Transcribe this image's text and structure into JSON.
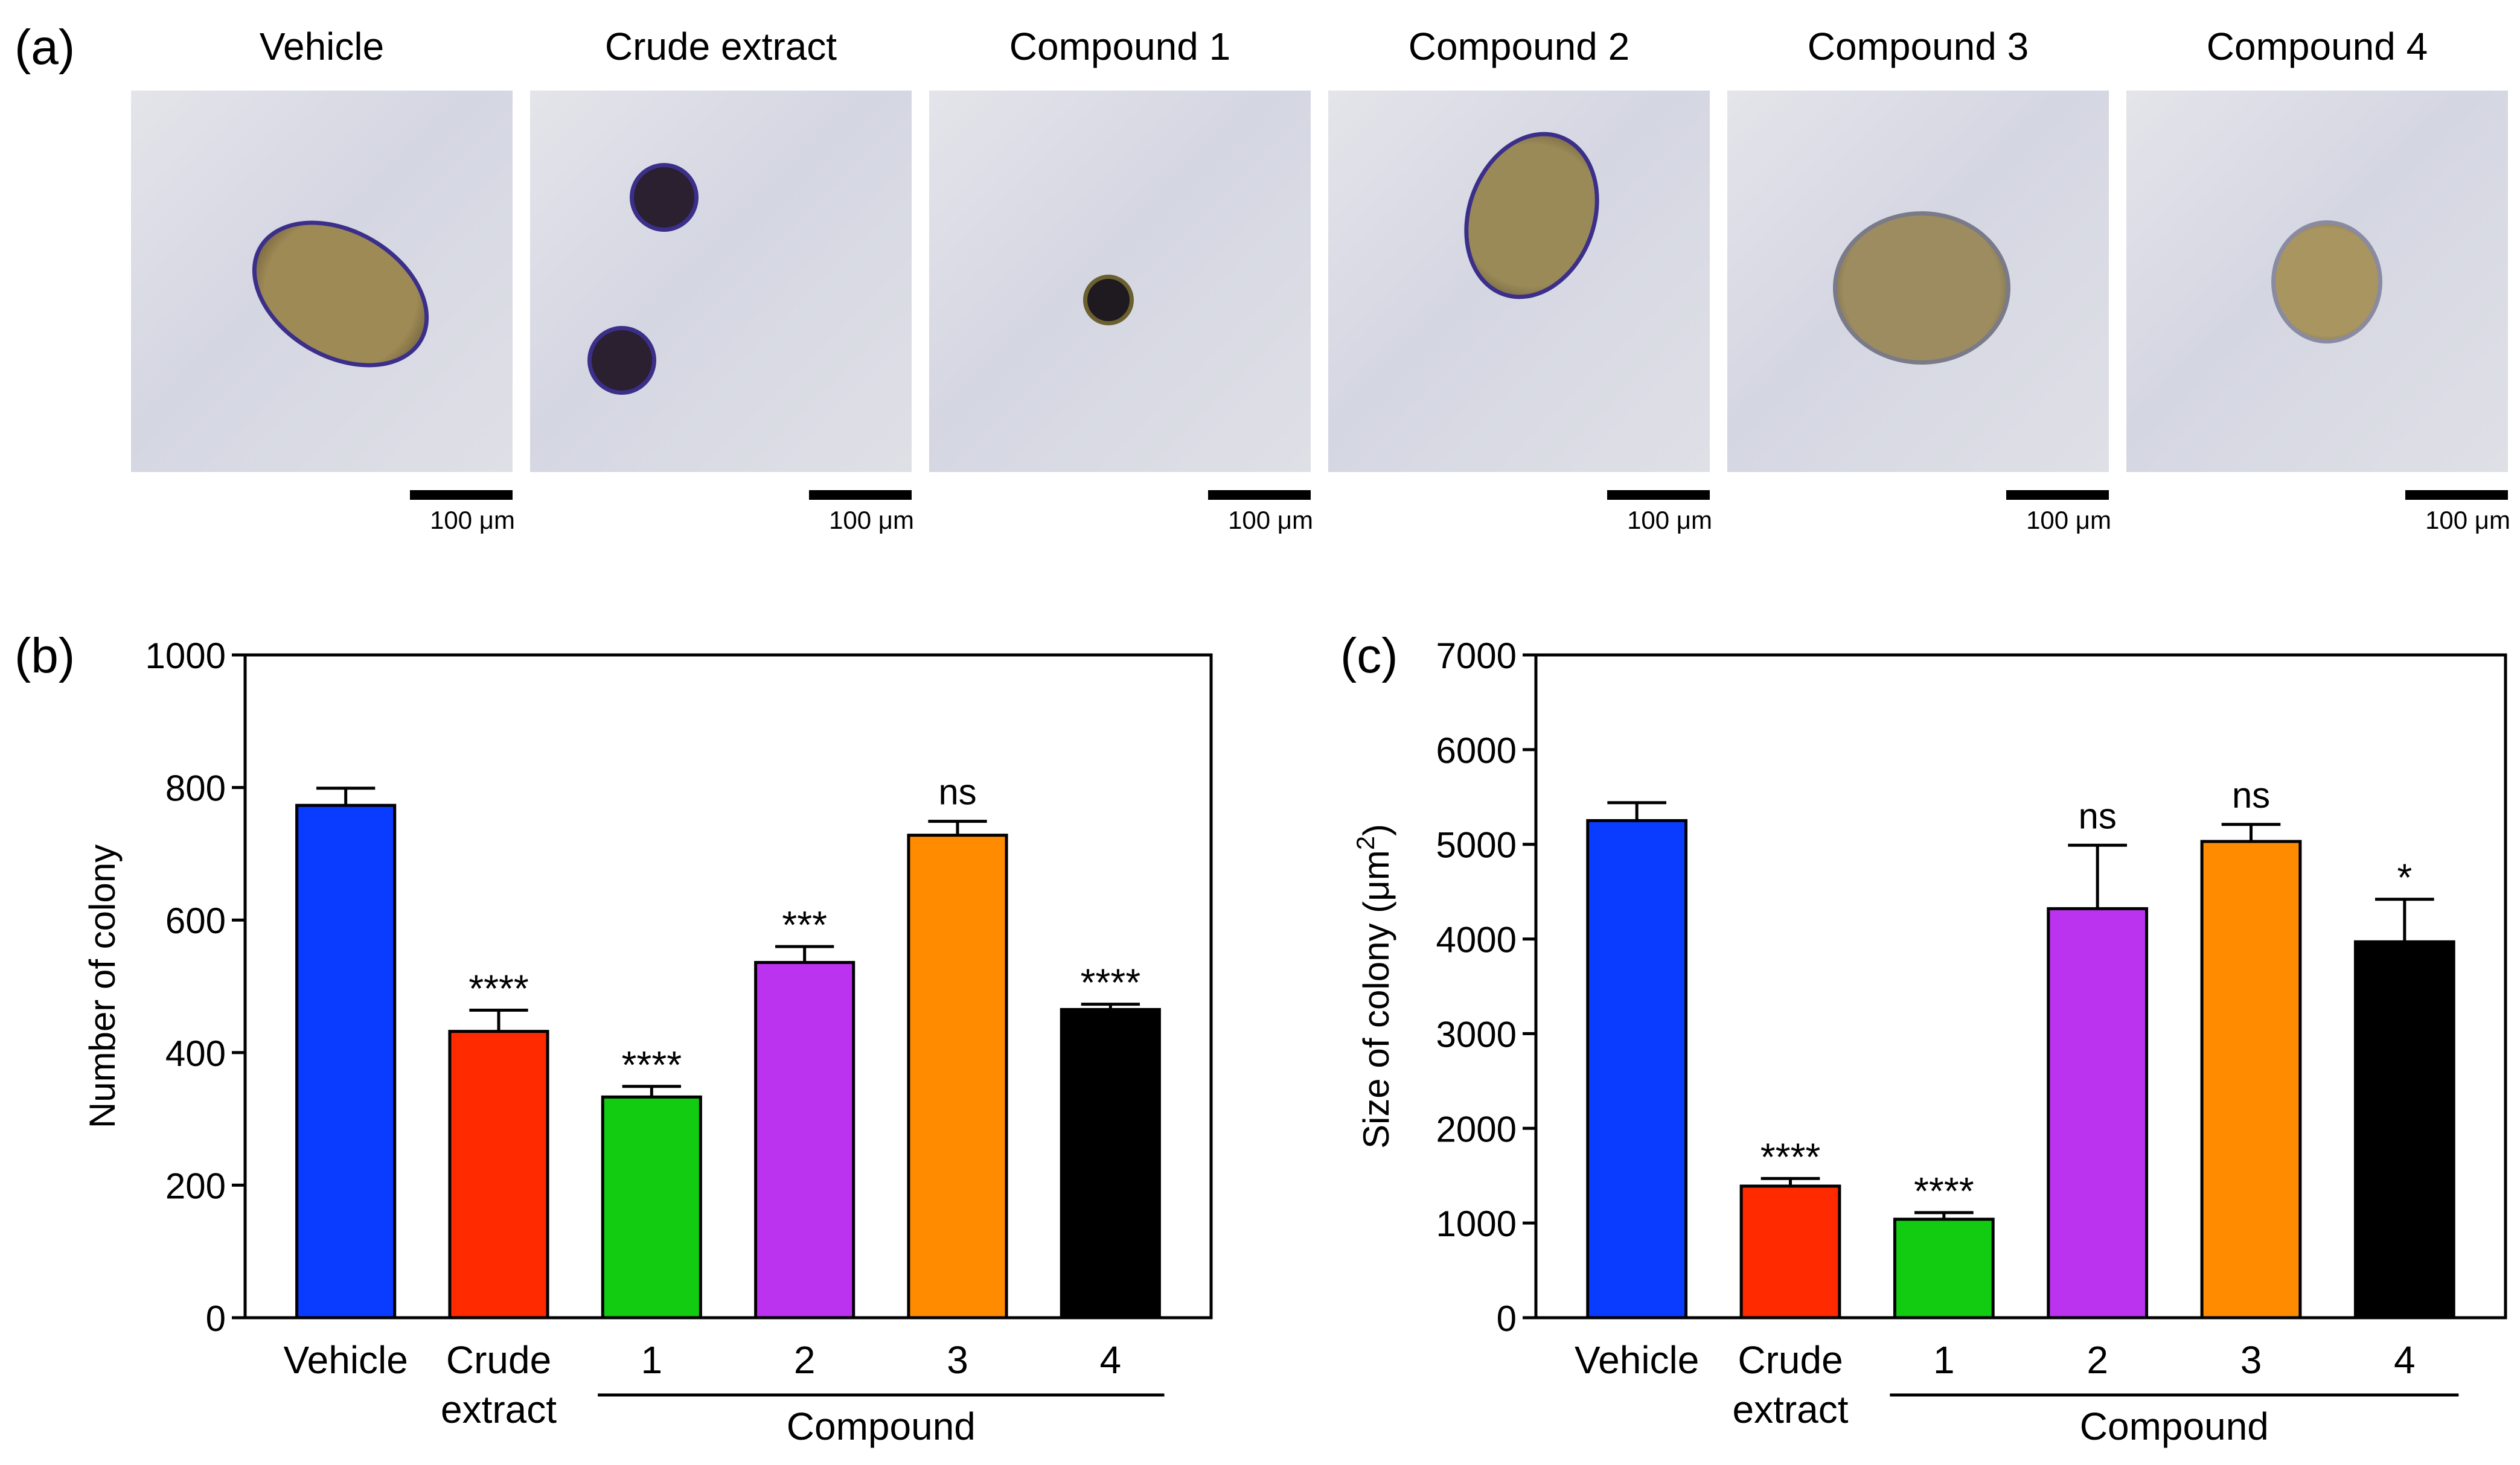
{
  "panel_a": {
    "label": "(a)",
    "images": [
      {
        "title": "Vehicle",
        "scale": "100 μm"
      },
      {
        "title": "Crude extract",
        "scale": "100 μm"
      },
      {
        "title": "Compound 1",
        "scale": "100 μm"
      },
      {
        "title": "Compound 2",
        "scale": "100 μm"
      },
      {
        "title": "Compound 3",
        "scale": "100 μm"
      },
      {
        "title": "Compound 4",
        "scale": "100 μm"
      }
    ]
  },
  "panel_b_label": "(b)",
  "panel_c_label": "(c)",
  "colors": {
    "Vehicle": "#0a3cff",
    "Crude extract": "#ff2a00",
    "Compound 1": "#11cc11",
    "Compound 2": "#bb33ee",
    "Compound 3": "#ff8c00",
    "Compound 4": "#000000"
  },
  "chart_data": [
    {
      "type": "bar",
      "panel": "(b)",
      "ylabel": "Number of colony",
      "ylim": [
        0,
        1000
      ],
      "yticks": [
        "0",
        "200",
        "400",
        "600",
        "800",
        "1000"
      ],
      "categories": [
        "Vehicle",
        "Crude extract",
        "1",
        "2",
        "3",
        "4"
      ],
      "category_lines": [
        [
          "Vehicle"
        ],
        [
          "Crude",
          "extract"
        ],
        [
          "1"
        ],
        [
          "2"
        ],
        [
          "3"
        ],
        [
          "4"
        ]
      ],
      "group_label": "Compound",
      "values": [
        773,
        432,
        333,
        536,
        728,
        465
      ],
      "errors": [
        26,
        32,
        16,
        24,
        21,
        8
      ],
      "significance": [
        "",
        "****",
        "****",
        "***",
        "ns",
        "****"
      ],
      "grid": false
    },
    {
      "type": "bar",
      "panel": "(c)",
      "ylabel": "Size of colony (μm",
      "ylabel_sup": "2",
      "ylabel_end": ")",
      "ylim": [
        0,
        7000
      ],
      "yticks": [
        "0",
        "1000",
        "2000",
        "3000",
        "4000",
        "5000",
        "6000",
        "7000"
      ],
      "categories": [
        "Vehicle",
        "Crude extract",
        "1",
        "2",
        "3",
        "4"
      ],
      "category_lines": [
        [
          "Vehicle"
        ],
        [
          "Crude",
          "extract"
        ],
        [
          "1"
        ],
        [
          "2"
        ],
        [
          "3"
        ],
        [
          "4"
        ]
      ],
      "group_label": "Compound",
      "values": [
        5250,
        1390,
        1040,
        4320,
        5030,
        3970
      ],
      "errors": [
        190,
        80,
        70,
        670,
        180,
        450
      ],
      "significance": [
        "",
        "****",
        "****",
        "ns",
        "ns",
        "*"
      ],
      "grid": false
    }
  ]
}
